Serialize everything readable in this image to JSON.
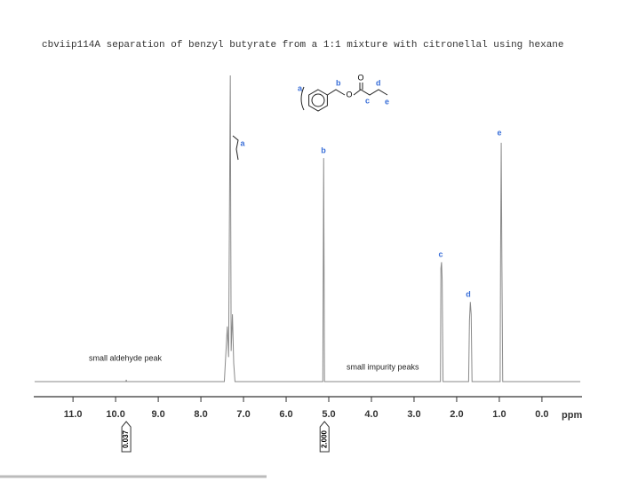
{
  "chart_data": {
    "type": "line",
    "title": "cbviip114A separation of benzyl butyrate from a 1:1 mixture with citronellal using hexane",
    "x": [
      11.9,
      9.76,
      9.75,
      9.74,
      7.45,
      7.38,
      7.35,
      7.31,
      7.29,
      7.26,
      7.23,
      7.2,
      5.14,
      5.12,
      5.1,
      2.38,
      2.37,
      2.355,
      2.34,
      2.32,
      1.72,
      1.7,
      1.68,
      1.66,
      1.64,
      0.98,
      0.97,
      0.955,
      0.94,
      0.92,
      -0.9
    ],
    "values": [
      0,
      0,
      0.6,
      0,
      0,
      18,
      8,
      100,
      10,
      22,
      6,
      0,
      0,
      73,
      0,
      0,
      37,
      39,
      33,
      0,
      0,
      20,
      26,
      22,
      0,
      0,
      42,
      78,
      40,
      0,
      0
    ],
    "color": "#8a8a8a",
    "xlim": [
      11.92,
      -0.94
    ],
    "ylim": [
      0,
      100
    ],
    "xticks": [
      {
        "value": 11,
        "label": "11.0"
      },
      {
        "value": 10,
        "label": "10.0"
      },
      {
        "value": 9,
        "label": "9.0"
      },
      {
        "value": 8,
        "label": "8.0"
      },
      {
        "value": 7,
        "label": "7.0"
      },
      {
        "value": 6,
        "label": "6.0"
      },
      {
        "value": 5,
        "label": "5.0"
      },
      {
        "value": 4,
        "label": "4.0"
      },
      {
        "value": 3,
        "label": "3.0"
      },
      {
        "value": 2,
        "label": "2.0"
      },
      {
        "value": 1,
        "label": "1.0"
      },
      {
        "value": 0,
        "label": "0.0"
      }
    ],
    "xlabel": "ppm",
    "peak_labels": [
      "a",
      "b",
      "c",
      "d",
      "e"
    ],
    "annotations": [
      "small aldehyde peak",
      "small impurity peaks"
    ],
    "integrals": {
      "x": [
        9.75,
        5.1
      ],
      "values": [
        0.037,
        2
      ],
      "value_labels": [
        "0.037",
        "2.000"
      ]
    },
    "structure": {
      "labels": [
        "a",
        "b",
        "c",
        "d",
        "e"
      ],
      "atoms": [
        "O",
        "O"
      ]
    }
  }
}
